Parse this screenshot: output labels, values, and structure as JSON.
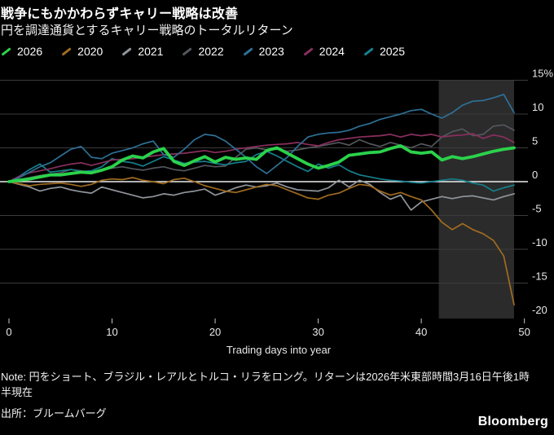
{
  "header": {
    "title": "戦争にもかかわらずキャリー戦略は改善",
    "subtitle": "円を調達通貨とするキャリー戦略のトータルリターン"
  },
  "legend": {
    "items": [
      {
        "label": "2026",
        "color": "#2bd24b"
      },
      {
        "label": "2020",
        "color": "#a06c20"
      },
      {
        "label": "2021",
        "color": "#90959b"
      },
      {
        "label": "2022",
        "color": "#53575c"
      },
      {
        "label": "2023",
        "color": "#2e7096"
      },
      {
        "label": "2024",
        "color": "#8a2f5e"
      },
      {
        "label": "2025",
        "color": "#15808d"
      }
    ]
  },
  "chart_data": {
    "type": "line",
    "title": "戦争にもかかわらずキャリー戦略は改善",
    "subtitle": "円を調達通貨とするキャリー戦略のトータルリターン",
    "xlabel": "Trading days into year",
    "ylabel": "%",
    "xlim": [
      0,
      50
    ],
    "ylim": [
      -20,
      15
    ],
    "x_ticks": [
      0,
      10,
      20,
      30,
      40,
      50
    ],
    "y_ticks": [
      15,
      10,
      5,
      0,
      -5,
      -10,
      -15,
      -20
    ],
    "y_tick_labels": [
      "15%",
      "10",
      "5",
      "0",
      "-5",
      "-10",
      "-15",
      "-20"
    ],
    "gridline_values": [
      15,
      10,
      5,
      -5,
      -10,
      -15
    ],
    "zero_line": true,
    "highlight_region": {
      "x_start": 41.7,
      "x_end": 49
    },
    "colors": {
      "background": "#000000",
      "grid": "#3b3b3b",
      "zero_line": "#ededed",
      "highlight": "#2b2b2b",
      "tick_text": "#e8e8e8"
    },
    "x_description": "one point per trading day, days 0-49",
    "series": [
      {
        "name": "2021",
        "color": "#90959b",
        "width": 1.7,
        "values": [
          0,
          -0.4,
          -0.8,
          -1.4,
          -1.0,
          -0.8,
          -1.2,
          -1.5,
          -1.7,
          -0.8,
          -1.2,
          -1.6,
          -2.0,
          -2.4,
          -2.2,
          -1.8,
          -2.0,
          -1.6,
          -1.4,
          -1.1,
          -2.0,
          -1.5,
          -0.9,
          -0.5,
          -0.8,
          -0.6,
          -0.2,
          -0.8,
          -1.2,
          -1.3,
          -1.4,
          -0.9,
          0.2,
          -0.8,
          0.2,
          -0.4,
          -1.6,
          -2.6,
          -2.0,
          -4.2,
          -3.0,
          -2.6,
          -2.2,
          -2.5,
          -2.2,
          -2.1,
          -2.4,
          -2.7,
          -2.2,
          -1.8
        ]
      },
      {
        "name": "2020",
        "color": "#a06c20",
        "width": 1.7,
        "values": [
          0,
          -0.3,
          -0.6,
          -0.4,
          -0.3,
          -0.2,
          -0.4,
          -0.7,
          -0.4,
          0.2,
          0.4,
          0.3,
          0.6,
          0.2,
          0.0,
          -0.3,
          0.3,
          0.5,
          0.0,
          -0.6,
          -1.0,
          -1.4,
          -1.6,
          -1.2,
          -0.8,
          -0.4,
          -0.6,
          -1.2,
          -1.8,
          -2.4,
          -2.6,
          -2.0,
          -1.7,
          -1.0,
          -0.4,
          -0.6,
          -1.4,
          -2.0,
          -1.6,
          -2.2,
          -2.7,
          -4.2,
          -6.0,
          -7.1,
          -6.2,
          -7.1,
          -7.7,
          -8.7,
          -11.0,
          -18.2
        ]
      },
      {
        "name": "2022",
        "color": "#53575c",
        "width": 1.7,
        "values": [
          0,
          0.3,
          0.6,
          0.9,
          1.1,
          1.3,
          1.8,
          1.6,
          1.4,
          1.7,
          2.0,
          2.2,
          1.9,
          1.7,
          2.0,
          2.2,
          1.8,
          1.6,
          2.0,
          2.4,
          2.2,
          2.3,
          3.6,
          4.8,
          5.0,
          4.7,
          4.8,
          4.5,
          4.7,
          5.0,
          5.2,
          5.5,
          5.8,
          5.4,
          6.2,
          5.6,
          5.2,
          5.8,
          5.4,
          5.0,
          5.6,
          5.2,
          6.6,
          7.4,
          7.8,
          6.8,
          7.0,
          8.2,
          8.4,
          7.6
        ]
      },
      {
        "name": "2025",
        "color": "#15808d",
        "width": 1.7,
        "values": [
          0,
          0.8,
          1.8,
          2.6,
          1.4,
          1.6,
          1.8,
          1.5,
          1.6,
          2.2,
          3.4,
          3.0,
          2.8,
          2.3,
          3.0,
          3.7,
          3.2,
          2.7,
          2.9,
          3.0,
          2.7,
          2.5,
          2.8,
          3.0,
          4.0,
          4.5,
          3.8,
          3.0,
          2.2,
          1.5,
          2.6,
          2.0,
          2.5,
          1.6,
          1.0,
          0.7,
          0.4,
          0.2,
          0.1,
          -0.1,
          -0.2,
          0.0,
          0.2,
          0.4,
          0.2,
          -0.2,
          -0.5,
          -1.4,
          -0.9,
          -0.5
        ]
      },
      {
        "name": "2024",
        "color": "#8a2f5e",
        "width": 1.7,
        "values": [
          0,
          0.8,
          1.3,
          1.6,
          1.9,
          2.3,
          2.6,
          2.8,
          2.4,
          2.8,
          3.2,
          3.3,
          3.4,
          3.6,
          3.8,
          4.0,
          4.1,
          4.2,
          4.4,
          4.6,
          4.3,
          4.5,
          4.8,
          5.0,
          5.2,
          5.4,
          5.5,
          5.6,
          5.8,
          5.5,
          5.3,
          5.8,
          6.2,
          6.4,
          6.6,
          6.7,
          6.8,
          7.0,
          6.6,
          7.0,
          6.8,
          7.0,
          6.6,
          6.8,
          6.9,
          7.1,
          6.4,
          6.9,
          6.6,
          5.8
        ]
      },
      {
        "name": "2023",
        "color": "#2e7096",
        "width": 1.7,
        "values": [
          0,
          0.6,
          1.4,
          2.2,
          2.8,
          3.8,
          4.8,
          5.2,
          3.6,
          3.4,
          4.2,
          4.6,
          5.0,
          5.6,
          6.0,
          4.0,
          3.6,
          4.8,
          6.2,
          7.0,
          6.8,
          6.0,
          4.8,
          3.6,
          2.2,
          1.2,
          2.4,
          3.6,
          5.2,
          6.6,
          7.0,
          7.2,
          7.3,
          7.6,
          8.2,
          8.6,
          9.2,
          9.6,
          10.0,
          10.5,
          10.7,
          10.0,
          9.4,
          10.2,
          11.3,
          11.9,
          12.0,
          12.4,
          12.9,
          10.2
        ]
      },
      {
        "name": "2026",
        "color": "#2bd24b",
        "width": 3.8,
        "values": [
          0,
          0.2,
          0.4,
          0.7,
          1.0,
          1.0,
          1.2,
          1.4,
          1.3,
          1.7,
          2.2,
          3.2,
          3.8,
          3.5,
          4.4,
          4.9,
          3.0,
          2.4,
          3.1,
          3.7,
          2.9,
          3.6,
          3.3,
          3.5,
          3.3,
          4.6,
          5.0,
          4.2,
          3.4,
          2.6,
          2.0,
          2.4,
          2.9,
          3.9,
          4.1,
          4.3,
          4.4,
          4.9,
          5.3,
          4.4,
          4.2,
          4.4,
          3.2,
          3.7,
          3.4,
          3.7,
          4.1,
          4.5,
          4.8,
          5.0
        ]
      }
    ]
  },
  "footer": {
    "note_line1": "Note: 円をショート、ブラジル・レアルとトルコ・リラをロング。リターンは2026年米東部時間3月16日午後1時",
    "note_line2": "半現在",
    "source": "出所：ブルームバーグ",
    "logo": "Bloomberg"
  }
}
